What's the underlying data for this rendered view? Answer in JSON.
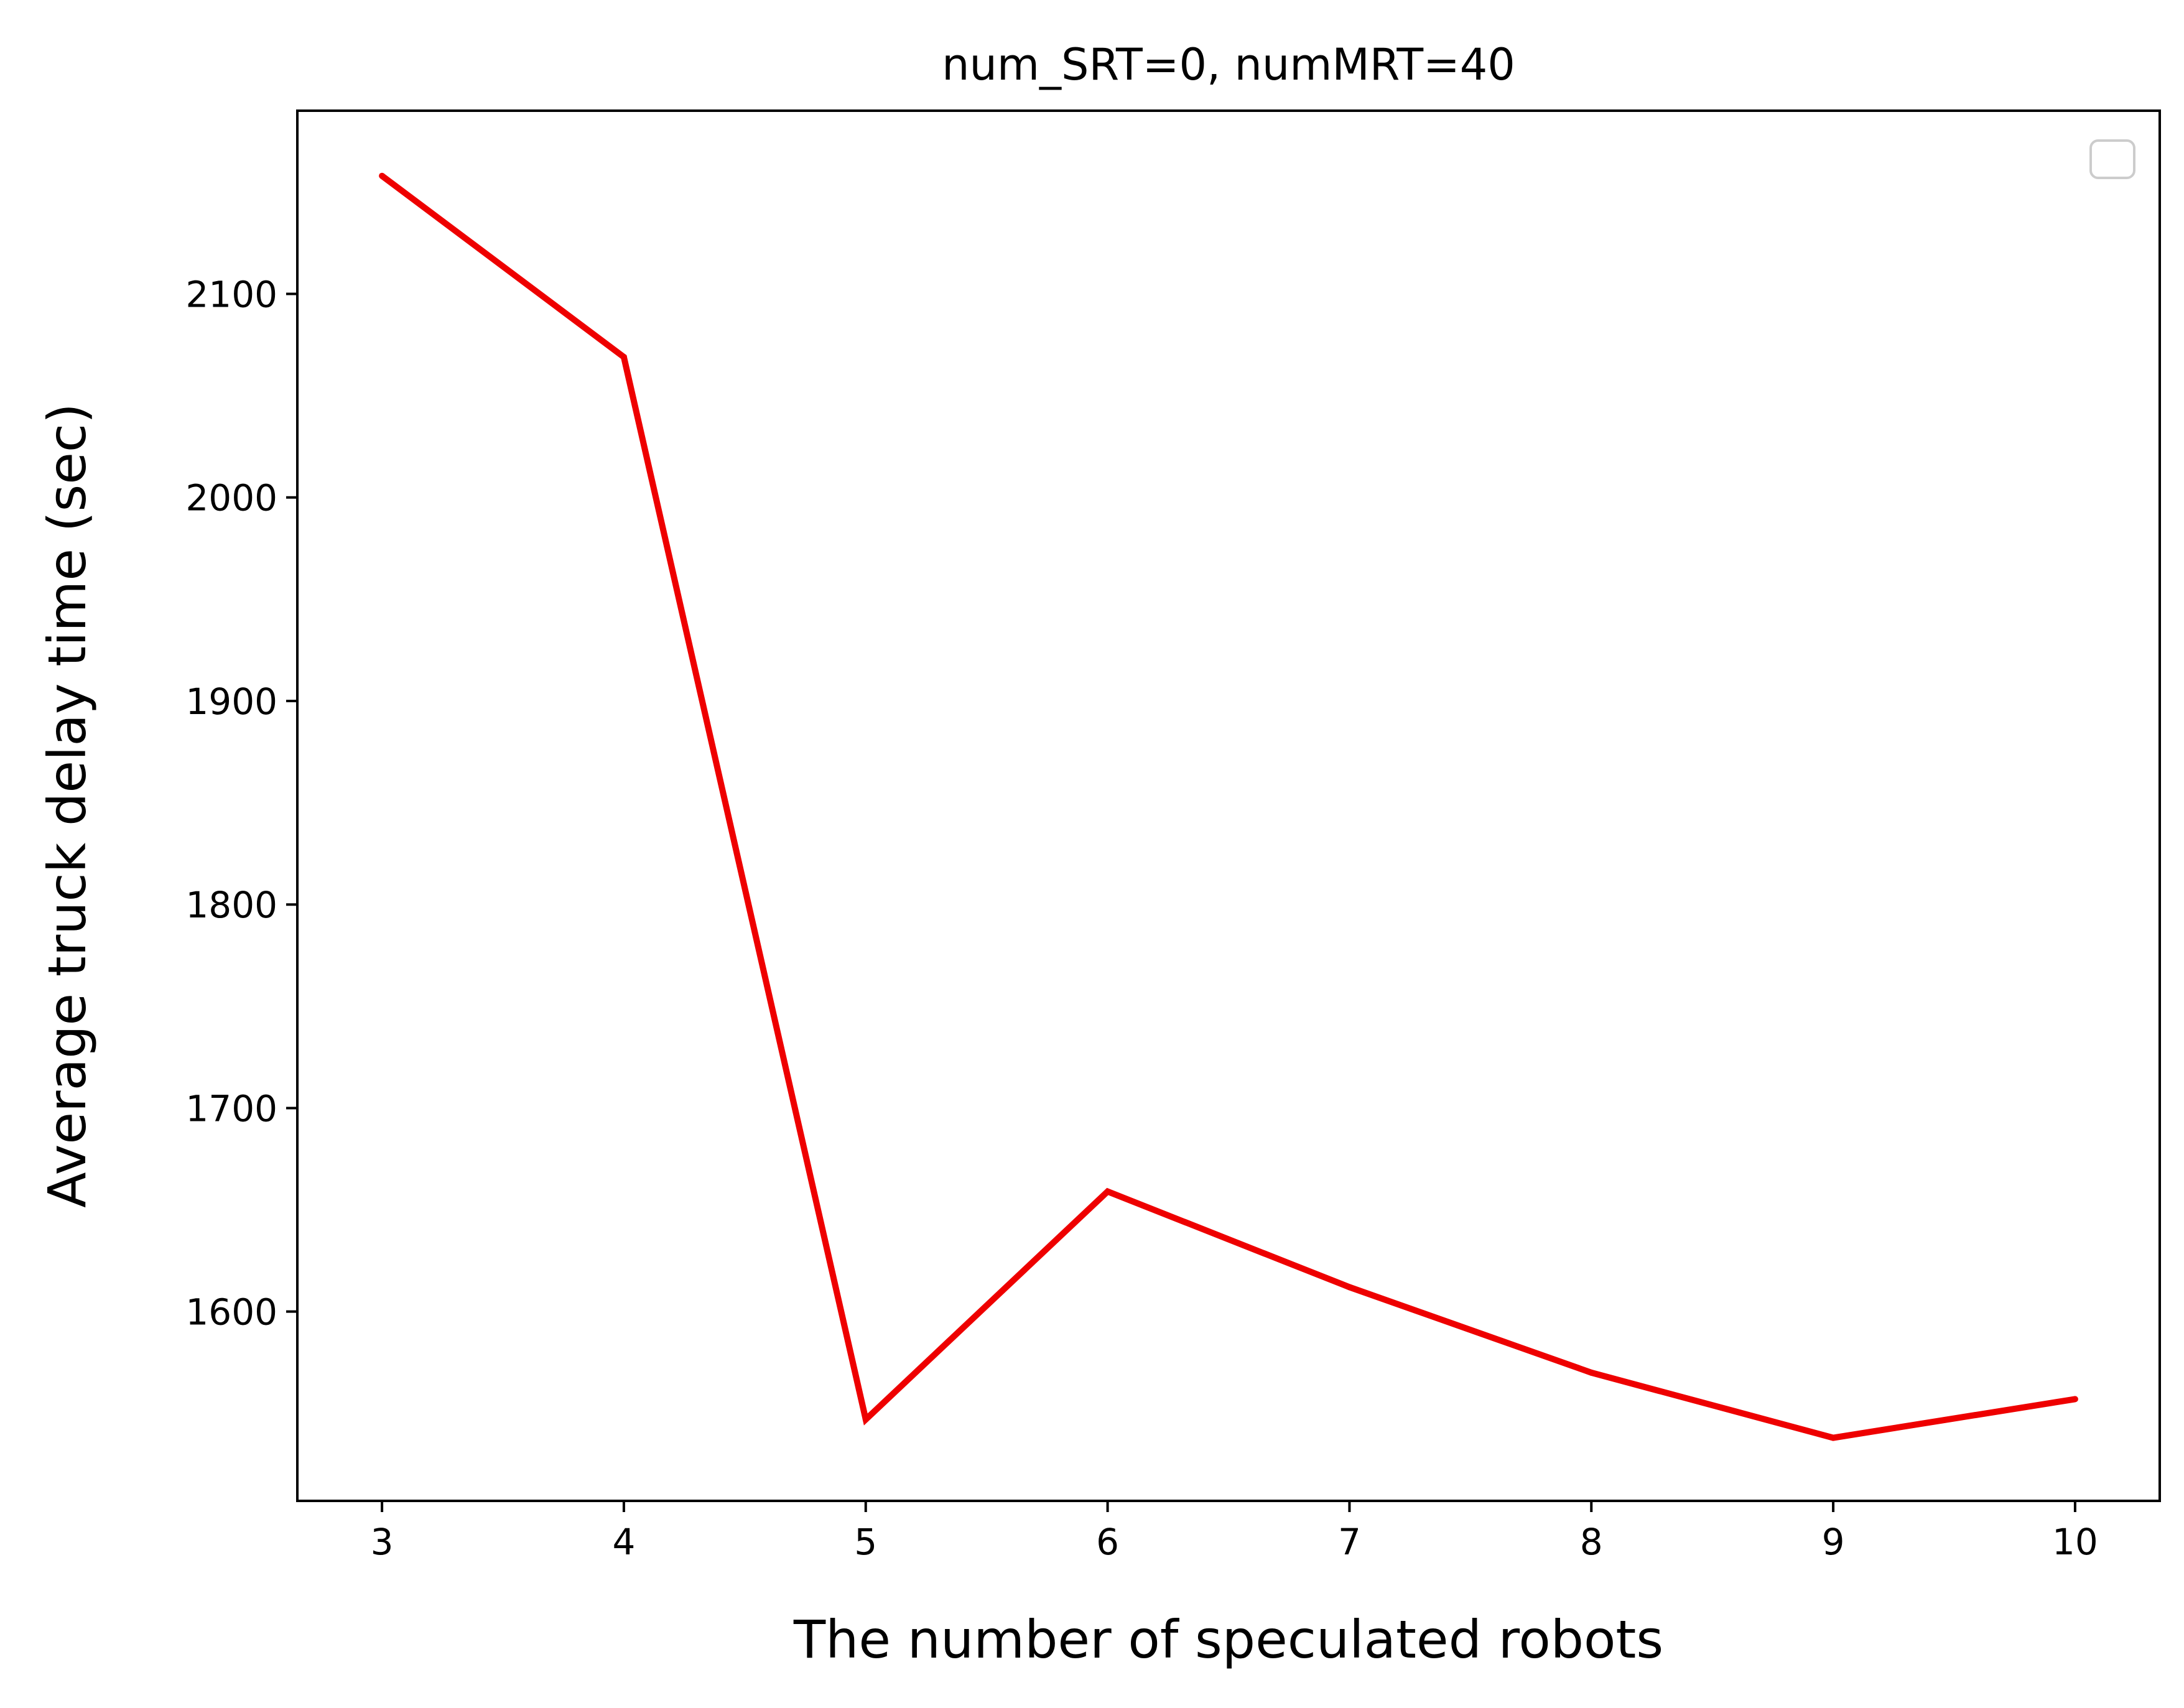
{
  "chart_data": {
    "type": "line",
    "title": "num_SRT=0, numMRT=40",
    "xlabel": "The number of speculated robots",
    "ylabel": "Average truck delay time (sec)",
    "x": [
      3,
      4,
      5,
      6,
      7,
      8,
      9,
      10
    ],
    "series": [
      {
        "values": [
          2158,
          2069,
          1547,
          1659,
          1612,
          1570,
          1538,
          1557
        ],
        "color": "#ee0000"
      }
    ],
    "xlim": [
      2.65,
      10.35
    ],
    "ylim": [
      1507,
      2190
    ],
    "xticks": [
      3,
      4,
      5,
      6,
      7,
      8,
      9,
      10
    ],
    "yticks": [
      1600,
      1700,
      1800,
      1900,
      2000,
      2100
    ],
    "grid": false,
    "legend": {
      "placement": "top-right",
      "entries": []
    }
  }
}
